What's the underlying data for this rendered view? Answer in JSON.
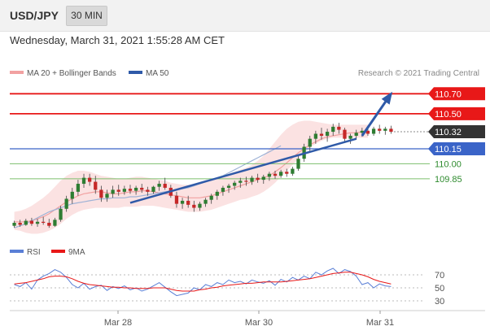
{
  "header": {
    "symbol": "USD/JPY",
    "timeframe": "30 MIN"
  },
  "timestamp": "Wednesday, March 31, 2021 1:55:28 AM CET",
  "legend": {
    "ma20": "MA 20 + Bollinger Bands",
    "ma50": "MA 50"
  },
  "credit": "Research © 2021 Trading Central",
  "colors": {
    "resistance": "#e81818",
    "current": "#333333",
    "pivot": "#3a64c8",
    "support": "#7cbf6e",
    "support_text": "#2e8b2e",
    "arrow": "#2f5aa8",
    "up": "#2e7d32",
    "down": "#c62828",
    "ma20": "#f2a1a1",
    "band_fill": "#fbe2e2",
    "ma50": "#9fb3d6",
    "rsi": "#5a7fd6",
    "rsi_ma": "#e81818"
  },
  "chart_data": [
    {
      "type": "candlestick",
      "ylim": [
        109.28,
        110.8
      ],
      "x_ticks": [
        "Mar 28",
        "Mar 30",
        "Mar 31"
      ],
      "price_labels": [
        "110.70",
        "110.50",
        "110.32",
        "110.15",
        "110.00",
        "109.85"
      ],
      "levels": [
        {
          "value": 110.7,
          "label": "110.70",
          "kind": "resistance"
        },
        {
          "value": 110.5,
          "label": "110.50",
          "kind": "resistance"
        },
        {
          "value": 110.32,
          "label": "110.32",
          "kind": "current"
        },
        {
          "value": 110.15,
          "label": "110.15",
          "kind": "pivot"
        },
        {
          "value": 110.0,
          "label": "110.00",
          "kind": "support"
        },
        {
          "value": 109.85,
          "label": "109.85",
          "kind": "support"
        }
      ],
      "candles": [
        [
          109.38,
          109.43,
          109.36,
          109.41
        ],
        [
          109.41,
          109.44,
          109.37,
          109.39
        ],
        [
          109.39,
          109.45,
          109.38,
          109.43
        ],
        [
          109.43,
          109.46,
          109.38,
          109.4
        ],
        [
          109.4,
          109.45,
          109.37,
          109.42
        ],
        [
          109.42,
          109.47,
          109.39,
          109.41
        ],
        [
          109.41,
          109.45,
          109.36,
          109.38
        ],
        [
          109.38,
          109.46,
          109.37,
          109.44
        ],
        [
          109.44,
          109.58,
          109.42,
          109.55
        ],
        [
          109.55,
          109.68,
          109.52,
          109.65
        ],
        [
          109.65,
          109.76,
          109.6,
          109.72
        ],
        [
          109.72,
          109.84,
          109.68,
          109.8
        ],
        [
          109.8,
          109.9,
          109.76,
          109.86
        ],
        [
          109.86,
          109.9,
          109.78,
          109.82
        ],
        [
          109.82,
          109.88,
          109.7,
          109.74
        ],
        [
          109.74,
          109.78,
          109.62,
          109.66
        ],
        [
          109.66,
          109.74,
          109.62,
          109.7
        ],
        [
          109.7,
          109.78,
          109.66,
          109.74
        ],
        [
          109.74,
          109.79,
          109.68,
          109.72
        ],
        [
          109.72,
          109.78,
          109.69,
          109.75
        ],
        [
          109.75,
          109.79,
          109.7,
          109.73
        ],
        [
          109.73,
          109.78,
          109.69,
          109.76
        ],
        [
          109.76,
          109.8,
          109.71,
          109.74
        ],
        [
          109.74,
          109.77,
          109.68,
          109.72
        ],
        [
          109.72,
          109.78,
          109.7,
          109.77
        ],
        [
          109.77,
          109.83,
          109.73,
          109.8
        ],
        [
          109.8,
          109.86,
          109.74,
          109.76
        ],
        [
          109.76,
          109.79,
          109.66,
          109.68
        ],
        [
          109.68,
          109.72,
          109.56,
          109.6
        ],
        [
          109.6,
          109.66,
          109.55,
          109.63
        ],
        [
          109.63,
          109.68,
          109.56,
          109.59
        ],
        [
          109.59,
          109.63,
          109.52,
          109.56
        ],
        [
          109.56,
          109.62,
          109.53,
          109.6
        ],
        [
          109.6,
          109.66,
          109.57,
          109.64
        ],
        [
          109.64,
          109.7,
          109.6,
          109.68
        ],
        [
          109.68,
          109.74,
          109.64,
          109.72
        ],
        [
          109.72,
          109.78,
          109.68,
          109.76
        ],
        [
          109.76,
          109.8,
          109.71,
          109.78
        ],
        [
          109.78,
          109.83,
          109.74,
          109.81
        ],
        [
          109.81,
          109.86,
          109.76,
          109.83
        ],
        [
          109.83,
          109.87,
          109.78,
          109.82
        ],
        [
          109.82,
          109.88,
          109.79,
          109.86
        ],
        [
          109.86,
          109.9,
          109.81,
          109.84
        ],
        [
          109.84,
          109.89,
          109.8,
          109.87
        ],
        [
          109.87,
          109.92,
          109.83,
          109.9
        ],
        [
          109.9,
          109.93,
          109.85,
          109.88
        ],
        [
          109.88,
          109.94,
          109.86,
          109.92
        ],
        [
          109.92,
          109.95,
          109.87,
          109.9
        ],
        [
          109.9,
          109.97,
          109.88,
          109.95
        ],
        [
          109.95,
          110.08,
          109.93,
          110.05
        ],
        [
          110.05,
          110.2,
          110.02,
          110.17
        ],
        [
          110.17,
          110.28,
          110.12,
          110.25
        ],
        [
          110.25,
          110.33,
          110.2,
          110.3
        ],
        [
          110.3,
          110.36,
          110.24,
          110.28
        ],
        [
          110.28,
          110.35,
          110.22,
          110.32
        ],
        [
          110.32,
          110.4,
          110.28,
          110.37
        ],
        [
          110.37,
          110.41,
          110.3,
          110.34
        ],
        [
          110.34,
          110.36,
          110.22,
          110.25
        ],
        [
          110.25,
          110.3,
          110.2,
          110.28
        ],
        [
          110.28,
          110.34,
          110.24,
          110.31
        ],
        [
          110.31,
          110.36,
          110.27,
          110.33
        ],
        [
          110.33,
          110.37,
          110.28,
          110.3
        ],
        [
          110.3,
          110.37,
          110.28,
          110.35
        ],
        [
          110.35,
          110.39,
          110.3,
          110.33
        ],
        [
          110.33,
          110.37,
          110.29,
          110.35
        ],
        [
          110.35,
          110.38,
          110.3,
          110.32
        ]
      ],
      "ma20": [
        109.42,
        109.42,
        109.42,
        109.43,
        109.45,
        109.47,
        109.5,
        109.54,
        109.58,
        109.62,
        109.65,
        109.68,
        109.7,
        109.71,
        109.72,
        109.72,
        109.71,
        109.7,
        109.7,
        109.71,
        109.72,
        109.72,
        109.73,
        109.73,
        109.72,
        109.71,
        109.7,
        109.69,
        109.68,
        109.67,
        109.66,
        109.66,
        109.66,
        109.67,
        109.68,
        109.7,
        109.72,
        109.74,
        109.76,
        109.78,
        109.8,
        109.82,
        109.84,
        109.86,
        109.88,
        109.92,
        109.96,
        110.01,
        110.06,
        110.11,
        110.15,
        110.19,
        110.22,
        110.25,
        110.27,
        110.28,
        110.29,
        110.3,
        110.31,
        110.31,
        110.32,
        110.32
      ],
      "bb_upper": [
        109.52,
        109.53,
        109.55,
        109.58,
        109.62,
        109.66,
        109.71,
        109.77,
        109.83,
        109.88,
        109.91,
        109.93,
        109.93,
        109.92,
        109.9,
        109.88,
        109.87,
        109.86,
        109.85,
        109.85,
        109.86,
        109.87,
        109.87,
        109.86,
        109.85,
        109.84,
        109.83,
        109.81,
        109.8,
        109.79,
        109.79,
        109.79,
        109.8,
        109.82,
        109.84,
        109.86,
        109.88,
        109.9,
        109.92,
        109.94,
        109.96,
        109.99,
        110.03,
        110.08,
        110.15,
        110.22,
        110.29,
        110.35,
        110.39,
        110.42,
        110.43,
        110.43,
        110.42,
        110.41,
        110.4,
        110.39,
        110.39,
        110.39,
        110.39,
        110.39,
        110.39,
        110.39
      ],
      "bb_lower": [
        109.34,
        109.33,
        109.31,
        109.3,
        109.3,
        109.31,
        109.33,
        109.36,
        109.4,
        109.45,
        109.49,
        109.52,
        109.54,
        109.55,
        109.56,
        109.56,
        109.56,
        109.56,
        109.56,
        109.57,
        109.57,
        109.57,
        109.58,
        109.58,
        109.58,
        109.57,
        109.56,
        109.55,
        109.54,
        109.53,
        109.52,
        109.52,
        109.52,
        109.53,
        109.54,
        109.56,
        109.58,
        109.6,
        109.62,
        109.64,
        109.65,
        109.67,
        109.69,
        109.72,
        109.76,
        109.81,
        109.87,
        109.93,
        109.99,
        110.05,
        110.11,
        110.16,
        110.2,
        110.23,
        110.25,
        110.26,
        110.26,
        110.26,
        110.26,
        110.26,
        110.26,
        110.26
      ],
      "ma50": [
        109.36,
        109.38,
        109.4,
        109.43,
        109.46,
        109.49,
        109.52,
        109.54,
        109.56,
        109.58,
        109.6,
        109.61,
        109.62,
        109.63,
        109.64,
        109.65,
        109.65,
        109.66,
        109.66,
        109.66,
        109.67,
        109.67,
        109.68,
        109.69,
        109.7,
        109.71,
        109.72,
        109.73,
        109.74,
        109.75,
        109.76,
        109.78,
        109.8,
        109.82,
        109.84,
        109.86,
        109.88,
        109.91,
        109.94,
        109.97,
        110.0,
        110.03,
        110.06,
        110.09,
        110.12,
        110.15,
        110.18
      ],
      "trendline": [
        [
          20,
          109.61
        ],
        [
          59,
          110.25
        ]
      ],
      "projection": [
        [
          60,
          110.28
        ],
        [
          65,
          110.7
        ]
      ]
    },
    {
      "type": "line",
      "ylim": [
        20,
        90
      ],
      "y_ticks": [
        "70",
        "50",
        "30"
      ],
      "legend": [
        "RSI",
        "9MA"
      ],
      "rsi": [
        55,
        52,
        58,
        48,
        62,
        68,
        72,
        78,
        74,
        66,
        55,
        50,
        57,
        48,
        52,
        54,
        46,
        52,
        49,
        53,
        47,
        50,
        45,
        48,
        53,
        58,
        51,
        44,
        38,
        40,
        42,
        50,
        47,
        55,
        52,
        58,
        55,
        62,
        58,
        60,
        56,
        62,
        59,
        57,
        61,
        54,
        63,
        59,
        66,
        62,
        68,
        64,
        74,
        70,
        76,
        80,
        72,
        78,
        75,
        68,
        55,
        58,
        50,
        56,
        53,
        52
      ],
      "rsi_ma": [
        56,
        57,
        58,
        60,
        62,
        64,
        67,
        68,
        68,
        67,
        64,
        60,
        57,
        55,
        54,
        53,
        52,
        51,
        51,
        50,
        50,
        49,
        49,
        49,
        50,
        50,
        50,
        48,
        46,
        45,
        45,
        45,
        47,
        48,
        50,
        51,
        53,
        54,
        55,
        56,
        57,
        57,
        58,
        59,
        59,
        59,
        59,
        60,
        61,
        62,
        63,
        64,
        66,
        68,
        70,
        72,
        73,
        74,
        74,
        72,
        70,
        67,
        63,
        60,
        58,
        56
      ]
    }
  ]
}
